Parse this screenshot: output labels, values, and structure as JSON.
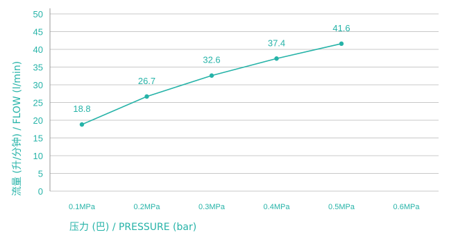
{
  "chart_data": {
    "type": "line",
    "categories": [
      "0.1MPa",
      "0.2MPa",
      "0.3MPa",
      "0.4MPa",
      "0.5MPa",
      "0.6MPa"
    ],
    "series": [
      {
        "values": [
          18.8,
          26.7,
          32.6,
          37.4,
          41.6,
          null
        ]
      }
    ],
    "data_labels": [
      "18.8",
      "26.7",
      "32.6",
      "37.4",
      "41.6"
    ],
    "ylim": [
      0,
      50
    ],
    "yticks": [
      0,
      5,
      10,
      15,
      20,
      25,
      30,
      35,
      40,
      45,
      50
    ],
    "xlabel": "压力 (巴) / PRESSURE (bar)",
    "ylabel": "流量 (升/分钟) / FLOW (l/min)",
    "grid": "horizontal",
    "legend": "none",
    "colors": {
      "accent": "#26b3a8",
      "grid": "#c8c8c8",
      "axis": "#999999"
    }
  }
}
